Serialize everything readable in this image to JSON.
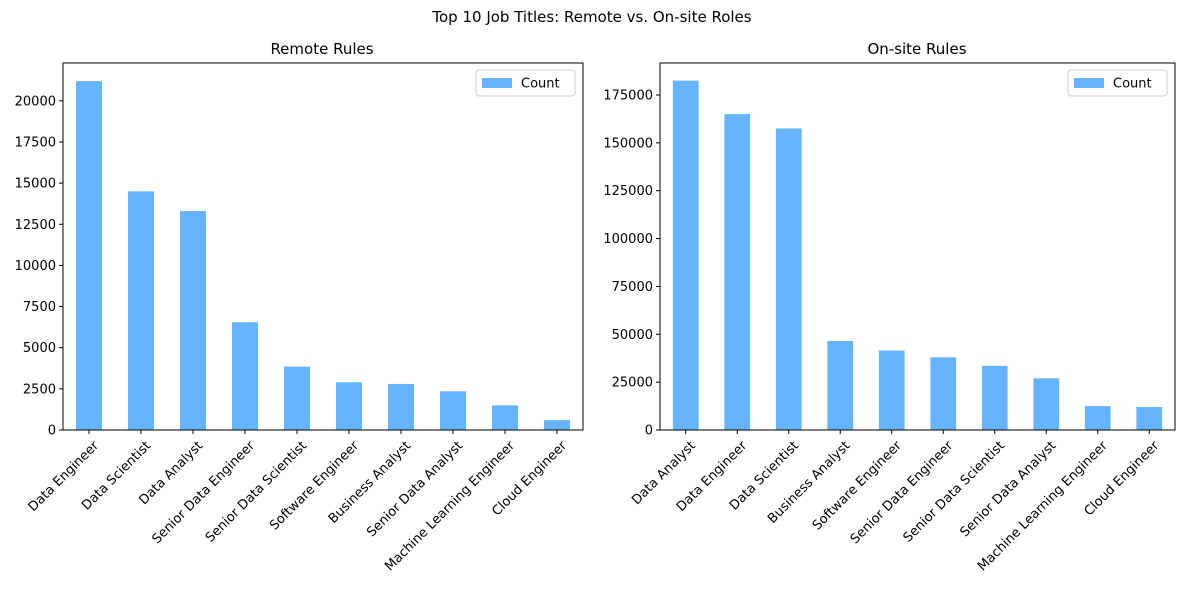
{
  "suptitle": "Top 10 Job Titles: Remote vs. On-site Roles",
  "colors": {
    "bar": "#66b3ff",
    "axis": "#000000",
    "legend_border": "#cccccc"
  },
  "chart_data": [
    {
      "type": "bar",
      "title": "Remote Rules",
      "xlabel": "",
      "ylabel": "",
      "legend": "top-right",
      "grid": false,
      "categories": [
        "Data Engineer",
        "Data Scientist",
        "Data Analyst",
        "Senior Data Engineer",
        "Senior Data Scientist",
        "Software Engineer",
        "Business Analyst",
        "Senior Data Analyst",
        "Machine Learning Engineer",
        "Cloud Engineer"
      ],
      "series": [
        {
          "name": "Count",
          "values": [
            21200,
            14500,
            13300,
            6550,
            3850,
            2900,
            2800,
            2350,
            1500,
            600
          ]
        }
      ],
      "ylim": [
        0,
        22300
      ],
      "yticks": [
        0,
        2500,
        5000,
        7500,
        10000,
        12500,
        15000,
        17500,
        20000
      ]
    },
    {
      "type": "bar",
      "title": "On-site Rules",
      "xlabel": "",
      "ylabel": "",
      "legend": "top-right",
      "grid": false,
      "categories": [
        "Data Analyst",
        "Data Engineer",
        "Data Scientist",
        "Business Analyst",
        "Software Engineer",
        "Senior Data Engineer",
        "Senior Data Scientist",
        "Senior Data Analyst",
        "Machine Learning Engineer",
        "Cloud Engineer"
      ],
      "series": [
        {
          "name": "Count",
          "values": [
            182500,
            165000,
            157500,
            46500,
            41500,
            38000,
            33500,
            27000,
            12500,
            12000
          ]
        }
      ],
      "ylim": [
        0,
        191700
      ],
      "yticks": [
        0,
        25000,
        50000,
        75000,
        100000,
        125000,
        150000,
        175000
      ]
    }
  ]
}
